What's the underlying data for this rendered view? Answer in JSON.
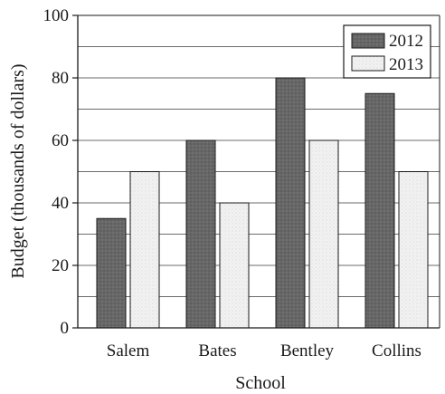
{
  "chart_data": {
    "type": "bar",
    "xlabel": "School",
    "ylabel": "Budget (thousands of dollars)",
    "categories": [
      "Salem",
      "Bates",
      "Bentley",
      "Collins"
    ],
    "series": [
      {
        "name": "2012",
        "values": [
          35,
          60,
          80,
          75
        ],
        "color": "#6b6b6b"
      },
      {
        "name": "2013",
        "values": [
          50,
          40,
          60,
          50
        ],
        "color": "#ededed"
      }
    ],
    "ylim": [
      0,
      100
    ],
    "yticks": [
      0,
      20,
      40,
      60,
      80,
      100
    ],
    "grid": true,
    "grid_step": 10,
    "legend_position": "top-right"
  }
}
